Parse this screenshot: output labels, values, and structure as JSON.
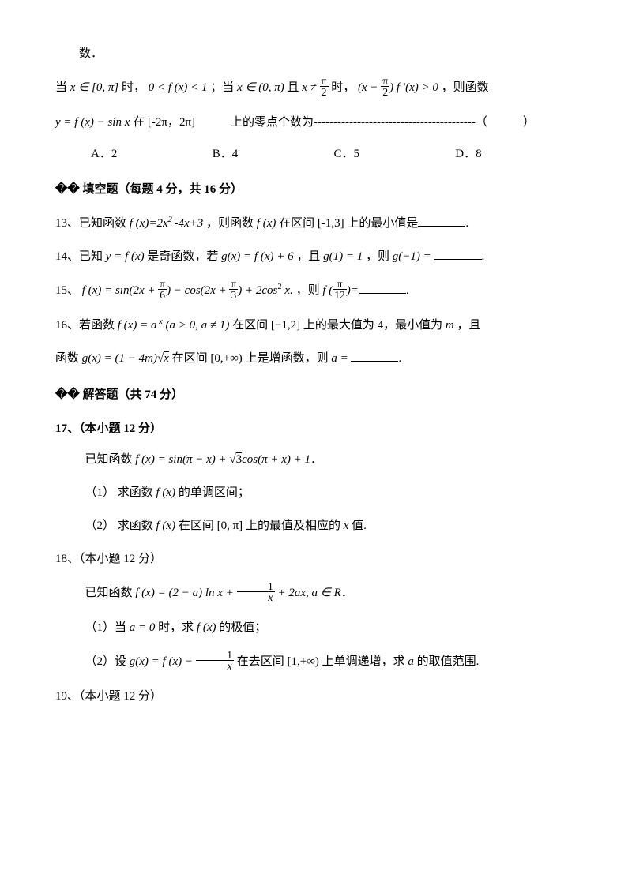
{
  "top": {
    "line0": "数．",
    "line1_pre": "当 ",
    "x_in_0pi": "x ∈ [0, π]",
    "line1_mid1": " 时，",
    "cond1": "0 < f (x) < 1",
    "line1_mid2": "；当 ",
    "x_in_0pi_open": "x ∈ (0, π)",
    "line1_mid3": " 且 ",
    "x_neq": "x ≠ ",
    "pi_over_2_num": "π",
    "pi_over_2_den": "2",
    "line1_mid4": " 时，",
    "paren_l": "(x − ",
    "paren_r": ") f ′(x) > 0",
    "line1_end": "，则函数",
    "line2_pre": "y = f (x) − sin x",
    "line2_mid": " 在 [-2π，2π]　　　上的零点个数为",
    "dashes": "-----------------------------------------",
    "line2_end": "（　　　）",
    "choice_a": "A．2",
    "choice_b": "B．4",
    "choice_c": "C．5",
    "choice_d": "D．8"
  },
  "section2": {
    "title": "��  填空题（每题 4 分，共 16 分）"
  },
  "q13": {
    "pre": "13、已知函数 ",
    "fx_def": "f (x)=2x",
    "sq": "2 ",
    "fx_def2": "-4x+3",
    "mid": "，则函数 ",
    "fx": "f (x)",
    "mid2": " 在区间 ",
    "interval": "[-1,3]",
    "end": " 上的最小值是",
    "period": "."
  },
  "q14": {
    "pre": "14、已知 ",
    "yfx": "y = f (x)",
    "mid1": " 是奇函数，若 ",
    "gx": "g(x) = f (x) + 6",
    "mid2": "，且 ",
    "g1": "g(1) = 1",
    "mid3": "，则 ",
    "gm1": "g(−1) = ",
    "period": "."
  },
  "q15": {
    "pre": "15、",
    "fx": "f (x) = sin(2x + ",
    "over6_num": "π",
    "over6_den": "6",
    "mid1": ") − cos(2x + ",
    "over3_num": "π",
    "over3_den": "3",
    "mid2": ") + 2cos",
    "sq": "2",
    "mid3": " x. ",
    "then": "，则 ",
    "fp": "f (",
    "over12_num": "π",
    "over12_den": "12",
    "fp_close": ")=",
    "period": "."
  },
  "q16": {
    "pre": "16、若函数 ",
    "fx": "f (x) = a",
    "sup_x": " x",
    "cond": " (a > 0, a ≠ 1)",
    "mid1": " 在区间 ",
    "interval": "[−1,2]",
    "mid2": " 上的最大值为 4，最小值为 ",
    "m": "m",
    "mid3": "，且",
    "line2_pre": "函数 ",
    "gx": "g(x) = (1 − 4m)",
    "sqrt_x": "x",
    "line2_mid": " 在区间 ",
    "interval2": "[0,+∞)",
    "line2_mid2": " 上是增函数，则 ",
    "a_eq": "a = ",
    "period": "."
  },
  "section3": {
    "title": "��  解答题（共 74 分）"
  },
  "q17": {
    "title": "17、（本小题 12 分）",
    "line1_pre": "已知函数 ",
    "fx": "f (x) = sin(π − x) + ",
    "sqrt3": "3",
    "fx2": "cos(π + x) + 1",
    "period": "．",
    "sub1_pre": "（1）  求函数 ",
    "sub1_fx": "f (x)",
    "sub1_end": " 的单调区间；",
    "sub2_pre": "（2）  求函数 ",
    "sub2_fx": "f (x)",
    "sub2_mid": " 在区间 ",
    "sub2_interval": "[0, π]",
    "sub2_end": " 上的最值及相应的 ",
    "sub2_x": "x",
    "sub2_end2": " 值."
  },
  "q18": {
    "title": "18、（本小题 12 分）",
    "line1_pre": "已知函数 ",
    "fx": "f (x) = (2 − a) ln x + ",
    "one": "1",
    "x": "x",
    "fx2": " + 2ax, a ∈ R",
    "period": "．",
    "sub1_pre": "（1）当 ",
    "sub1_a": "a = 0",
    "sub1_mid": " 时，求 ",
    "sub1_fx": "f (x)",
    "sub1_end": " 的极值；",
    "sub2_pre": "（2）设 ",
    "sub2_gx": "g(x) = f (x) − ",
    "sub2_one": "1",
    "sub2_x": "x",
    "sub2_mid": " 在去区间 ",
    "sub2_interval": "[1,+∞)",
    "sub2_end": " 上单调递增，求 ",
    "sub2_a": "a",
    "sub2_end2": " 的取值范围."
  },
  "q19": {
    "title": "19、（本小题 12 分）"
  }
}
